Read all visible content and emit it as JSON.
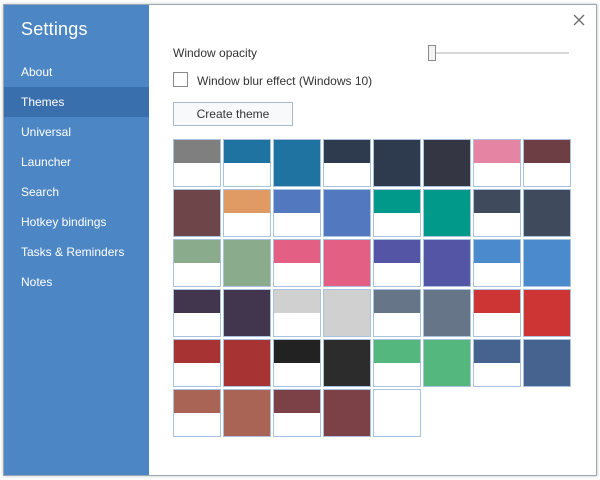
{
  "sidebar": {
    "title": "Settings",
    "items": [
      {
        "label": "About",
        "name": "sidebar-item-about",
        "active": false
      },
      {
        "label": "Themes",
        "name": "sidebar-item-themes",
        "active": true
      },
      {
        "label": "Universal",
        "name": "sidebar-item-universal",
        "active": false
      },
      {
        "label": "Launcher",
        "name": "sidebar-item-launcher",
        "active": false
      },
      {
        "label": "Search",
        "name": "sidebar-item-search",
        "active": false
      },
      {
        "label": "Hotkey bindings",
        "name": "sidebar-item-hotkey-bindings",
        "active": false
      },
      {
        "label": "Tasks & Reminders",
        "name": "sidebar-item-tasks-reminders",
        "active": false
      },
      {
        "label": "Notes",
        "name": "sidebar-item-notes",
        "active": false
      }
    ]
  },
  "colors": {
    "sidebar": "#4d86c4",
    "sidebar_active": "#3a6fae"
  },
  "themes_panel": {
    "opacity_label": "Window opacity",
    "opacity_value": 0,
    "blur_label": "Window blur effect (Windows 10)",
    "blur_checked": false,
    "create_theme_label": "Create theme"
  },
  "themes": [
    {
      "color": "#7f7f7f",
      "style": "light"
    },
    {
      "color": "#1e73a0",
      "style": "light"
    },
    {
      "color": "#1e73a0",
      "style": "dark"
    },
    {
      "color": "#2e3b4f",
      "style": "light"
    },
    {
      "color": "#2e3b4f",
      "style": "dark"
    },
    {
      "color": "#343743",
      "style": "dark"
    },
    {
      "color": "#e684a3",
      "style": "light"
    },
    {
      "color": "#6e3e45",
      "style": "light"
    },
    {
      "color": "#6e4548",
      "style": "dark"
    },
    {
      "color": "#e09a63",
      "style": "light"
    },
    {
      "color": "#5278c0",
      "style": "light"
    },
    {
      "color": "#5278c0",
      "style": "dark"
    },
    {
      "color": "#00998a",
      "style": "light"
    },
    {
      "color": "#00998a",
      "style": "dark"
    },
    {
      "color": "#3f4a5c",
      "style": "light"
    },
    {
      "color": "#3f4a5c",
      "style": "dark"
    },
    {
      "color": "#8aab8c",
      "style": "light"
    },
    {
      "color": "#8aab8c",
      "style": "dark"
    },
    {
      "color": "#e45f84",
      "style": "light"
    },
    {
      "color": "#e45f84",
      "style": "dark"
    },
    {
      "color": "#5455a5",
      "style": "light"
    },
    {
      "color": "#5455a5",
      "style": "dark"
    },
    {
      "color": "#4b8bcd",
      "style": "light"
    },
    {
      "color": "#4b8bcd",
      "style": "dark"
    },
    {
      "color": "#42364f",
      "style": "light"
    },
    {
      "color": "#42364f",
      "style": "dark"
    },
    {
      "color": "#d0d0d0",
      "style": "light"
    },
    {
      "color": "#d0d0d0",
      "style": "dark"
    },
    {
      "color": "#677589",
      "style": "light"
    },
    {
      "color": "#677589",
      "style": "dark"
    },
    {
      "color": "#cd3535",
      "style": "light"
    },
    {
      "color": "#cd3535",
      "style": "dark"
    },
    {
      "color": "#a83333",
      "style": "light"
    },
    {
      "color": "#a83333",
      "style": "dark"
    },
    {
      "color": "#222222",
      "style": "light"
    },
    {
      "color": "#2c2c2c",
      "style": "dark"
    },
    {
      "color": "#53b77e",
      "style": "light"
    },
    {
      "color": "#53b77e",
      "style": "dark"
    },
    {
      "color": "#46628e",
      "style": "light"
    },
    {
      "color": "#46628e",
      "style": "dark"
    },
    {
      "color": "#a96455",
      "style": "light"
    },
    {
      "color": "#a96455",
      "style": "dark"
    },
    {
      "color": "#7c4146",
      "style": "light"
    },
    {
      "color": "#7c4146",
      "style": "dark"
    },
    {
      "color": "#ffffff",
      "style": "blank"
    }
  ]
}
